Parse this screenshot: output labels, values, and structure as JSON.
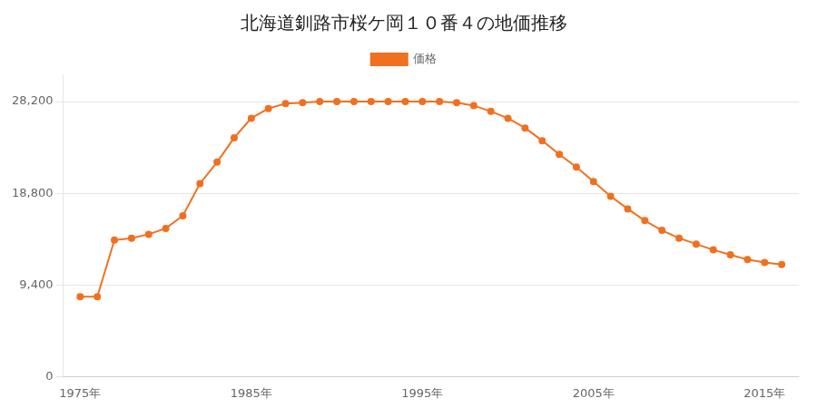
{
  "chart_data": {
    "type": "line",
    "title": "北海道釧路市桜ケ岡１０番４の地価推移",
    "x": [
      1975,
      1976,
      1977,
      1978,
      1979,
      1980,
      1981,
      1982,
      1983,
      1984,
      1985,
      1986,
      1987,
      1988,
      1989,
      1990,
      1991,
      1992,
      1993,
      1994,
      1995,
      1996,
      1997,
      1998,
      1999,
      2000,
      2001,
      2002,
      2003,
      2004,
      2005,
      2006,
      2007,
      2008,
      2009,
      2010,
      2011,
      2012,
      2013,
      2014,
      2015,
      2016
    ],
    "series": [
      {
        "name": "価格",
        "color": "#f07020",
        "marker": "circle",
        "values": [
          8200,
          8200,
          14000,
          14200,
          14600,
          15200,
          16500,
          19800,
          22000,
          24500,
          26500,
          27500,
          28000,
          28100,
          28200,
          28200,
          28200,
          28200,
          28200,
          28200,
          28200,
          28200,
          28100,
          27800,
          27200,
          26500,
          25500,
          24200,
          22800,
          21500,
          20000,
          18500,
          17200,
          16000,
          15000,
          14200,
          13600,
          13000,
          12500,
          12000,
          11700,
          11500
        ]
      }
    ],
    "xlim": [
      1974,
      2017
    ],
    "xticks": [
      {
        "value": 1975,
        "label": "1975年"
      },
      {
        "value": 1985,
        "label": "1985年"
      },
      {
        "value": 1995,
        "label": "1995年"
      },
      {
        "value": 2005,
        "label": "2005年"
      },
      {
        "value": 2015,
        "label": "2015年"
      }
    ],
    "ylim": [
      0,
      31000
    ],
    "yticks": [
      0,
      {
        "value": 9400,
        "label": "9,400"
      },
      {
        "value": 18800,
        "label": "18,800"
      },
      {
        "value": 28200,
        "label": "28,200"
      }
    ],
    "grid": "y",
    "legend": "top"
  }
}
